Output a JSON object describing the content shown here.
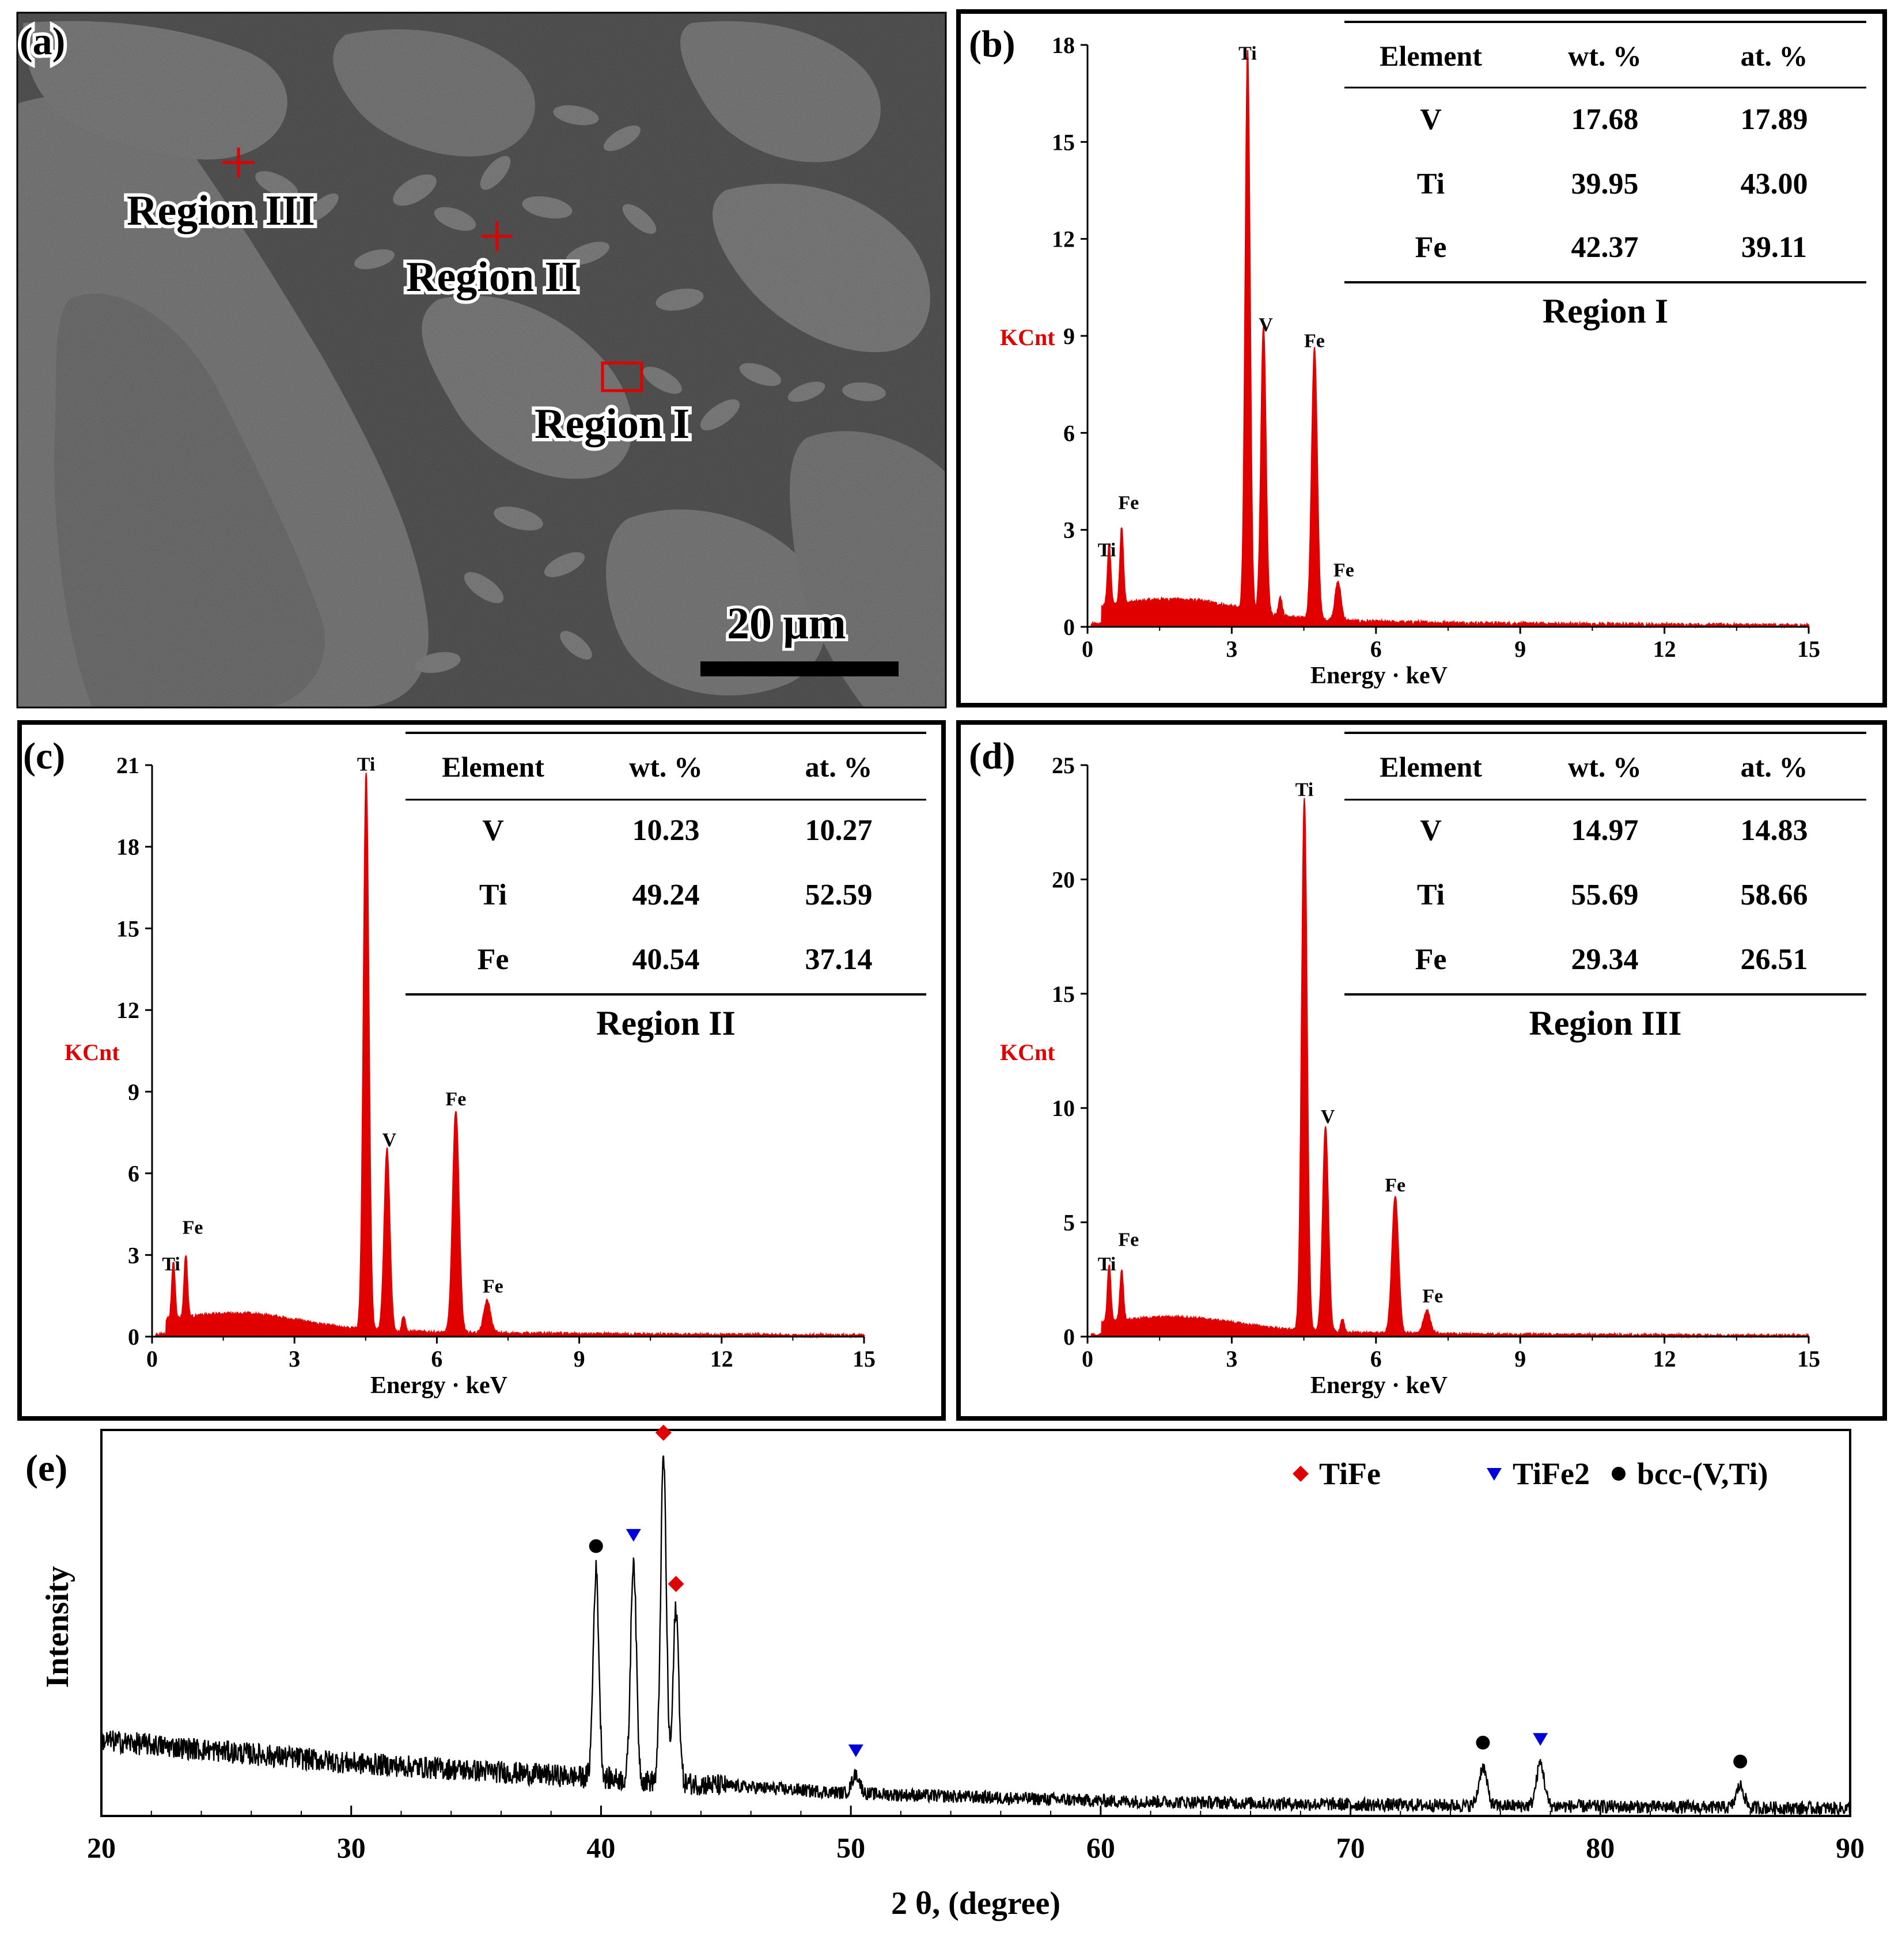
{
  "panels": {
    "a": {
      "label": "(a)",
      "scale_bar": "20 μm",
      "regions": [
        "Region III",
        "Region II",
        "Region I"
      ]
    },
    "b": {
      "label": "(b)"
    },
    "c": {
      "label": "(c)"
    },
    "d": {
      "label": "(d)"
    },
    "e": {
      "label": "(e)"
    }
  },
  "colors": {
    "spectrum": "#e00000",
    "tife": "#e00000",
    "tife2": "#0000dd",
    "bcc": "#000000"
  },
  "chart_data": [
    {
      "panel": "b",
      "type": "area",
      "title": "Region I",
      "xlabel": "Energy · keV",
      "ylabel": "KCnt",
      "xlim": [
        0,
        15
      ],
      "ylim": [
        0,
        18
      ],
      "xticks": [
        0,
        3,
        6,
        9,
        12,
        15
      ],
      "yticks": [
        0,
        3,
        6,
        9,
        12,
        15,
        18
      ],
      "peaks": [
        {
          "element": "Ti",
          "x": 0.45,
          "y": 1.9
        },
        {
          "element": "Fe",
          "x": 0.71,
          "y": 2.4
        },
        {
          "element": "Ti",
          "x": 3.33,
          "y": 17.3
        },
        {
          "element": "V",
          "x": 3.66,
          "y": 8.9
        },
        {
          "element": "Fe",
          "x": 4.72,
          "y": 8.4
        },
        {
          "element": "Fe",
          "x": 5.21,
          "y": 1.2
        }
      ],
      "table": {
        "headers": [
          "Element",
          "wt. %",
          "at. %"
        ],
        "rows": [
          [
            "V",
            "17.68",
            "17.89"
          ],
          [
            "Ti",
            "39.95",
            "43.00"
          ],
          [
            "Fe",
            "42.37",
            "39.11"
          ]
        ]
      }
    },
    {
      "panel": "c",
      "type": "area",
      "title": "Region II",
      "xlabel": "Energy · keV",
      "ylabel": "KCnt",
      "xlim": [
        0,
        15
      ],
      "ylim": [
        0,
        21
      ],
      "xticks": [
        0,
        3,
        6,
        9,
        12,
        15
      ],
      "yticks": [
        0,
        3,
        6,
        9,
        12,
        15,
        18,
        21
      ],
      "peaks": [
        {
          "element": "Ti",
          "x": 0.45,
          "y": 2.1
        },
        {
          "element": "Fe",
          "x": 0.71,
          "y": 2.3
        },
        {
          "element": "Ti",
          "x": 4.51,
          "y": 20.5
        },
        {
          "element": "V",
          "x": 4.95,
          "y": 6.7
        },
        {
          "element": "Fe",
          "x": 6.4,
          "y": 8.2
        },
        {
          "element": "Fe",
          "x": 7.06,
          "y": 1.2
        }
      ],
      "table": {
        "headers": [
          "Element",
          "wt. %",
          "at. %"
        ],
        "rows": [
          [
            "V",
            "10.23",
            "10.27"
          ],
          [
            "Ti",
            "49.24",
            "52.59"
          ],
          [
            "Fe",
            "40.54",
            "37.14"
          ]
        ]
      }
    },
    {
      "panel": "d",
      "type": "area",
      "title": "Region III",
      "xlabel": "Energy · keV",
      "ylabel": "KCnt",
      "xlim": [
        0,
        15
      ],
      "ylim": [
        0,
        25
      ],
      "xticks": [
        0,
        3,
        6,
        9,
        12,
        15
      ],
      "yticks": [
        0,
        5,
        10,
        15,
        20,
        25
      ],
      "peaks": [
        {
          "element": "Ti",
          "x": 0.45,
          "y": 2.5
        },
        {
          "element": "Fe",
          "x": 0.71,
          "y": 2.2
        },
        {
          "element": "Ti",
          "x": 4.51,
          "y": 23.3
        },
        {
          "element": "V",
          "x": 4.95,
          "y": 9.0
        },
        {
          "element": "Fe",
          "x": 6.4,
          "y": 6.0
        },
        {
          "element": "Fe",
          "x": 7.06,
          "y": 1.0
        }
      ],
      "table": {
        "headers": [
          "Element",
          "wt. %",
          "at. %"
        ],
        "rows": [
          [
            "V",
            "14.97",
            "14.83"
          ],
          [
            "Ti",
            "55.69",
            "58.66"
          ],
          [
            "Fe",
            "29.34",
            "26.51"
          ]
        ]
      }
    },
    {
      "panel": "e",
      "type": "line",
      "xlabel": "2 θ, (degree)",
      "ylabel": "Intensity",
      "xlim": [
        20,
        90
      ],
      "ylim": [
        0,
        100
      ],
      "xticks": [
        20,
        30,
        40,
        50,
        60,
        70,
        80,
        90
      ],
      "legend": [
        "TiFe",
        "TiFe2",
        "bcc-(V,Ti)"
      ],
      "baseline": [
        [
          20,
          20
        ],
        [
          30,
          14
        ],
        [
          40,
          10
        ],
        [
          50,
          6
        ],
        [
          60,
          4
        ],
        [
          70,
          3
        ],
        [
          90,
          2
        ]
      ],
      "peaks": [
        {
          "x": 39.8,
          "y": 65,
          "phase": "bcc-(V,Ti)"
        },
        {
          "x": 41.3,
          "y": 68,
          "phase": "TiFe2"
        },
        {
          "x": 42.5,
          "y": 95,
          "phase": "TiFe"
        },
        {
          "x": 43.0,
          "y": 55,
          "phase": "TiFe"
        },
        {
          "x": 50.2,
          "y": 11,
          "phase": "TiFe2"
        },
        {
          "x": 75.3,
          "y": 13,
          "phase": "bcc-(V,Ti)"
        },
        {
          "x": 77.6,
          "y": 14,
          "phase": "TiFe2"
        },
        {
          "x": 85.6,
          "y": 8,
          "phase": "bcc-(V,Ti)"
        }
      ]
    }
  ]
}
